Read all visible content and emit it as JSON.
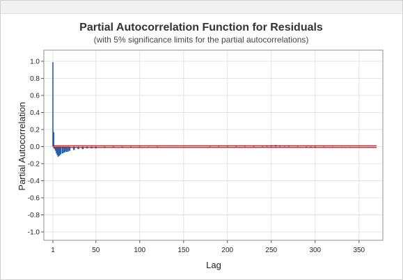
{
  "chart_data": {
    "type": "bar",
    "title": "Partial Autocorrelation Function for Residuals",
    "subtitle": "(with 5% significance limits for the partial autocorrelations)",
    "xlabel": "Lag",
    "ylabel": "Partial Autocorrelation",
    "xlim": [
      1,
      370
    ],
    "ylim": [
      -1.0,
      1.0
    ],
    "x_ticks": [
      1,
      50,
      100,
      150,
      200,
      250,
      300,
      350
    ],
    "y_ticks": [
      1.0,
      0.8,
      0.6,
      0.4,
      0.2,
      0.0,
      -0.2,
      -0.4,
      -0.6,
      -0.8,
      -1.0
    ],
    "y_tick_labels": [
      "1.0",
      "0.8",
      "0.6",
      "0.4",
      "0.2",
      "0.0",
      "-0.2",
      "-0.4",
      "-0.6",
      "-0.8",
      "-1.0"
    ],
    "grid": true,
    "significance_limit": 0.01,
    "colors": {
      "bars": "#1f5fa8",
      "limits": "#c0141c",
      "grid": "#e3e3e3"
    },
    "lags": [
      1,
      2,
      3,
      4,
      5,
      6,
      7,
      8,
      9,
      10,
      12,
      14,
      16,
      18,
      20,
      25,
      30,
      35,
      40,
      45,
      50,
      60,
      70,
      80,
      90,
      100,
      110,
      120,
      150,
      180,
      190,
      200,
      210,
      220,
      230,
      240,
      245,
      250,
      255,
      260,
      265,
      270,
      280,
      290,
      295,
      300,
      310,
      320,
      330,
      340,
      350,
      360
    ],
    "values": [
      0.99,
      0.17,
      -0.03,
      -0.05,
      -0.08,
      -0.1,
      -0.12,
      -0.11,
      -0.1,
      -0.09,
      -0.08,
      -0.07,
      -0.06,
      -0.06,
      -0.05,
      -0.04,
      -0.03,
      -0.03,
      -0.02,
      -0.02,
      -0.02,
      -0.015,
      -0.012,
      -0.01,
      -0.008,
      -0.005,
      0.003,
      -0.004,
      0.002,
      0.004,
      0.005,
      0.006,
      0.007,
      0.006,
      0.009,
      0.012,
      0.014,
      0.016,
      0.018,
      0.014,
      0.012,
      0.01,
      0.006,
      -0.012,
      -0.01,
      -0.008,
      0.004,
      0.003,
      -0.002,
      0.002,
      -0.002,
      0.001
    ]
  }
}
